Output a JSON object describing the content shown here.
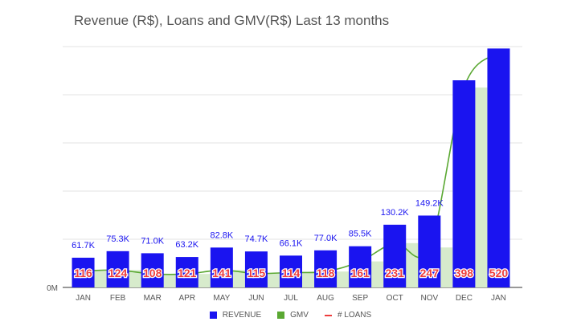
{
  "chart_data": {
    "type": "bar",
    "title": "Revenue (R$), Loans and GMV(R$) Last 13 months",
    "categories": [
      "JAN",
      "FEB",
      "MAR",
      "APR",
      "MAY",
      "JUN",
      "JUL",
      "AUG",
      "SEP",
      "OCT",
      "NOV",
      "DEC",
      "JAN"
    ],
    "y_tick_labels": [
      "0M"
    ],
    "ylim": [
      0,
      500
    ],
    "grid": true,
    "legend_position": "bottom",
    "series": [
      {
        "name": "REVENUE",
        "type": "bar",
        "color": "#1a14f0",
        "values": [
          61.7,
          75.3,
          71.0,
          63.2,
          82.8,
          74.7,
          66.1,
          77.0,
          85.5,
          130.2,
          149.2,
          430.0,
          496.0
        ],
        "labels": [
          "61.7K",
          "75.3K",
          "71.0K",
          "63.2K",
          "82.8K",
          "74.7K",
          "66.1K",
          "77.0K",
          "85.5K",
          "130.2K",
          "149.2K",
          "",
          ""
        ]
      },
      {
        "name": "GMV",
        "type": "area",
        "color": "#5aa832",
        "fill": "#d7ebcc",
        "values": [
          34,
          36,
          28,
          28,
          36,
          29,
          31,
          33,
          54,
          92,
          83,
          415,
          487
        ]
      },
      {
        "name": "# LOANS",
        "type": "line",
        "color": "#ee3d3d",
        "values": [
          116,
          124,
          108,
          121,
          141,
          115,
          114,
          118,
          161,
          231,
          247,
          398,
          520
        ]
      }
    ]
  }
}
